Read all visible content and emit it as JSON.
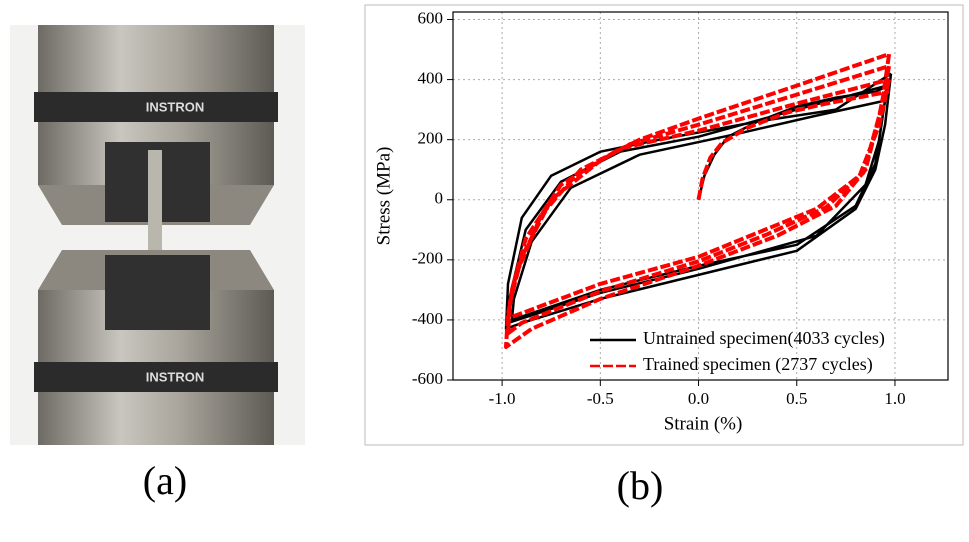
{
  "panels": [
    "(a)",
    "(b)"
  ],
  "photo": {
    "brand": "INSTRON"
  },
  "chart_data": {
    "type": "line",
    "xlabel": "Strain (%)",
    "ylabel": "Stress (MPa)",
    "xlim": [
      -1.25,
      1.27
    ],
    "ylim": [
      -600,
      625
    ],
    "xticks": [
      {
        "value": -1,
        "label": "-1.0"
      },
      -0.5,
      {
        "value": 0,
        "label": "0.0"
      },
      0.5,
      {
        "value": 1,
        "label": "1.0"
      }
    ],
    "yticks": [
      -600,
      -400,
      -200,
      0,
      200,
      400,
      600
    ],
    "grid": true,
    "legend": "lower right",
    "series": [
      {
        "name": "Untrained specimen(4033 cycles)",
        "color": "#000000",
        "linestyle": "solid",
        "x": [
          0,
          0.03,
          0.08,
          0.15,
          0.3,
          0.5,
          0.7,
          0.9,
          0.97,
          null,
          0.98,
          0.95,
          0.9,
          0.8,
          0.5,
          0,
          -0.5,
          -0.9,
          -0.98,
          -0.97,
          -0.9,
          -0.75,
          -0.5,
          -0.2,
          0.3,
          0.7,
          0.98,
          null,
          0.96,
          0.92,
          0.85,
          0.6,
          0,
          -0.5,
          -0.97,
          -0.96,
          -0.88,
          -0.7,
          -0.4,
          0,
          0.5,
          0.96,
          null,
          0.95,
          0.9,
          0.8,
          0.5,
          0,
          -0.5,
          -0.95,
          -0.94,
          -0.85,
          -0.65,
          -0.3,
          0.2,
          0.6,
          0.95
        ],
        "values": [
          0,
          80,
          150,
          210,
          260,
          310,
          340,
          360,
          380,
          null,
          420,
          250,
          100,
          -30,
          -170,
          -250,
          -330,
          -410,
          -430,
          -280,
          -60,
          80,
          160,
          200,
          260,
          300,
          420,
          null,
          380,
          200,
          50,
          -120,
          -230,
          -310,
          -410,
          -320,
          -100,
          60,
          160,
          210,
          300,
          380,
          null,
          330,
          120,
          -20,
          -150,
          -220,
          -300,
          -400,
          -330,
          -140,
          40,
          150,
          220,
          280,
          330
        ]
      },
      {
        "name": "Trained specimen (2737 cycles)",
        "color": "#ff0000",
        "linestyle": "dashed",
        "x": [
          0,
          0.02,
          0.06,
          0.12,
          0.25,
          0.45,
          0.65,
          0.85,
          0.97,
          null,
          0.97,
          0.93,
          0.85,
          0.7,
          0.4,
          0,
          -0.5,
          -0.85,
          -0.98,
          -0.97,
          -0.93,
          -0.8,
          -0.6,
          -0.3,
          0,
          0.5,
          0.97,
          null,
          0.97,
          0.92,
          0.84,
          0.65,
          0.35,
          0,
          -0.5,
          -0.9,
          -0.97,
          -0.96,
          -0.9,
          -0.75,
          -0.5,
          -0.35,
          0,
          0.5,
          0.97,
          null,
          0.97,
          0.92,
          0.82,
          0.6,
          0.3,
          0,
          -0.5,
          -0.95,
          -0.97,
          -0.95,
          -0.88,
          -0.7,
          -0.4,
          0,
          0.5,
          0.97
        ],
        "values": [
          0,
          70,
          140,
          190,
          240,
          290,
          320,
          345,
          360,
          null,
          485,
          300,
          100,
          -20,
          -120,
          -220,
          -330,
          -430,
          -490,
          -380,
          -250,
          -50,
          100,
          200,
          270,
          380,
          485,
          null,
          445,
          280,
          90,
          -25,
          -115,
          -205,
          -305,
          -410,
          -445,
          -340,
          -190,
          0,
          130,
          185,
          250,
          350,
          445,
          null,
          400,
          250,
          80,
          -30,
          -110,
          -190,
          -280,
          -390,
          -400,
          -300,
          -130,
          50,
          170,
          230,
          320,
          400
        ]
      }
    ]
  }
}
